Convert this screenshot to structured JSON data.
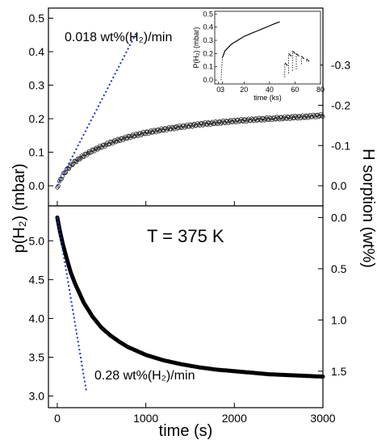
{
  "chart_data": [
    {
      "type": "scatter",
      "panel": "top",
      "annotation_rate": "0.018 wt%(H₂)/min",
      "ylabel_left": "p(H₂) (mbar)",
      "ylabel_right": "H sorption (wt%)",
      "xlim": [
        -100,
        3000
      ],
      "ylim": [
        -0.06,
        0.53
      ],
      "yticks_left": [
        "0.0",
        "0.1",
        "0.2",
        "0.3",
        "0.4",
        "0.5"
      ],
      "yticks_right": [
        "0.0",
        "-0.1",
        "-0.2",
        "-0.3"
      ],
      "series": [
        {
          "x": [
            0,
            30,
            60,
            100,
            150,
            200,
            300,
            400,
            500,
            600,
            700,
            800,
            900,
            1000,
            1200,
            1400,
            1600,
            1800,
            2000,
            2200,
            2400,
            2600,
            2800,
            3000
          ],
          "y": [
            -0.005,
            0.015,
            0.03,
            0.045,
            0.06,
            0.072,
            0.09,
            0.105,
            0.117,
            0.128,
            0.137,
            0.145,
            0.152,
            0.158,
            0.168,
            0.176,
            0.183,
            0.188,
            0.193,
            0.197,
            0.2,
            0.203,
            0.206,
            0.21
          ]
        },
        {
          "name": "tangent",
          "x": [
            0,
            900
          ],
          "y": [
            0,
            0.46
          ]
        }
      ]
    },
    {
      "type": "line",
      "panel": "inset",
      "xlabel": "time (ks)",
      "ylabel": "P(H₂) (mbar)",
      "xlim": [
        -3,
        80
      ],
      "ylim": [
        -0.03,
        0.52
      ],
      "xticks": [
        "0",
        "3",
        "20",
        "40",
        "60",
        "80"
      ],
      "yticks": [
        "0.0",
        "0.1",
        "0.2",
        "0.3",
        "0.4",
        "0.5"
      ],
      "series": [
        {
          "x": [
            3,
            5,
            8,
            10,
            15,
            20,
            25,
            30,
            35,
            40,
            45,
            48
          ],
          "y": [
            0.17,
            0.22,
            0.25,
            0.27,
            0.3,
            0.33,
            0.35,
            0.37,
            0.39,
            0.41,
            0.43,
            0.44
          ]
        }
      ]
    },
    {
      "type": "scatter",
      "panel": "bottom",
      "temperature": "T = 375 K",
      "annotation_rate": "0.28 wt%(H₂)/min",
      "xlabel": "time (s)",
      "xlim": [
        -100,
        3000
      ],
      "ylim": [
        2.85,
        5.45
      ],
      "xticks": [
        "0",
        "1000",
        "2000",
        "3000"
      ],
      "yticks_left": [
        "3.0",
        "3.5",
        "4.0",
        "4.5",
        "5.0"
      ],
      "yticks_right": [
        "0.0",
        "0.5",
        "1.0",
        "1.5"
      ],
      "series": [
        {
          "x": [
            0,
            30,
            60,
            100,
            150,
            200,
            300,
            400,
            500,
            600,
            700,
            800,
            900,
            1000,
            1200,
            1400,
            1600,
            1800,
            2000,
            2200,
            2400,
            2600,
            2800,
            3000
          ],
          "y": [
            5.3,
            5.12,
            4.97,
            4.8,
            4.6,
            4.45,
            4.2,
            4.02,
            3.88,
            3.78,
            3.7,
            3.63,
            3.58,
            3.53,
            3.46,
            3.41,
            3.37,
            3.34,
            3.32,
            3.3,
            3.28,
            3.27,
            3.26,
            3.25
          ]
        },
        {
          "name": "tangent",
          "x": [
            0,
            330
          ],
          "y": [
            5.3,
            3.05
          ]
        }
      ]
    }
  ],
  "shared_ylabel": "p(H₂) (mbar)",
  "shared_ylabel_right": "H sorption (wt%)"
}
